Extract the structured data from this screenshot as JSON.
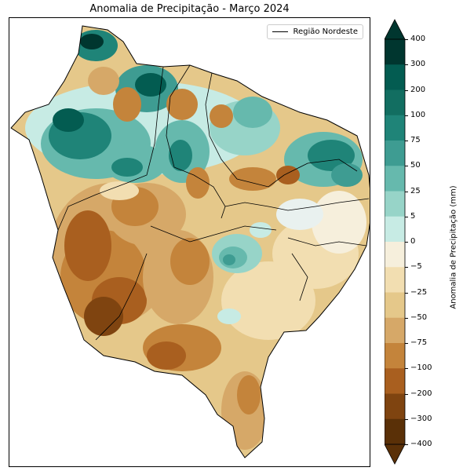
{
  "title": "Anomalia de Precipitação - Março 2024",
  "legend": {
    "label": "Região Nordeste"
  },
  "colorbar": {
    "label": "Anomalia de Precipitação (mm)",
    "ticks": [
      "400",
      "300",
      "200",
      "100",
      "75",
      "50",
      "25",
      "5",
      "0",
      "−5",
      "−25",
      "−50",
      "−75",
      "−100",
      "−200",
      "−300",
      "−400"
    ],
    "colors": [
      "#00362f",
      "#035c51",
      "#126e61",
      "#1f8478",
      "#3e9c92",
      "#66b9ad",
      "#97d4c8",
      "#c7ebe4",
      "#e9f1ef",
      "#f6efdc",
      "#f2deb1",
      "#e5c88a",
      "#d6a868",
      "#c4843b",
      "#a95f1f",
      "#7f4410",
      "#5a3007"
    ]
  },
  "map": {
    "region": "Nordeste (Brasil)",
    "state_labels": []
  }
}
